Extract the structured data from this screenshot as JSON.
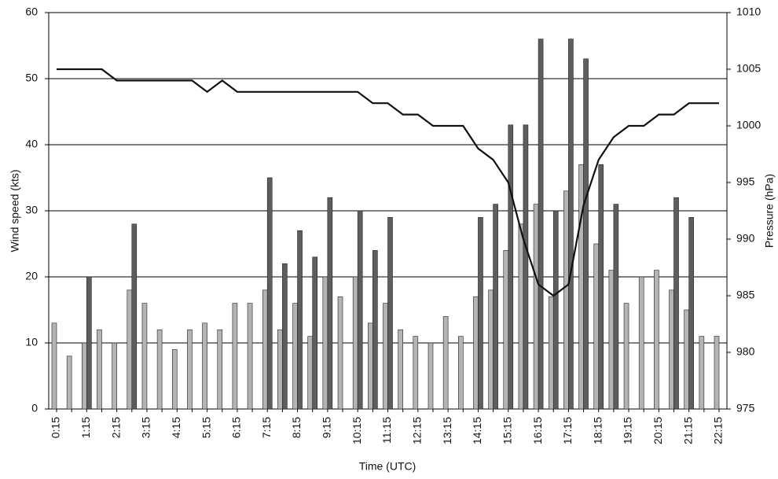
{
  "chart_data": {
    "type": "bar_line",
    "y_label": "Wind speed (kts)",
    "y2_label": "Pressure (hPa)",
    "x_label": "Time (UTC)",
    "categories": [
      "0:15",
      null,
      "1:15",
      null,
      "2:15",
      null,
      "3:15",
      null,
      "4:15",
      null,
      "5:15",
      null,
      "6:15",
      null,
      "7:15",
      null,
      "8:15",
      null,
      "9:15",
      null,
      "10:15",
      null,
      "11:15",
      null,
      "12:15",
      null,
      "13:15",
      null,
      "14:15",
      null,
      "15:15",
      null,
      "16:15",
      null,
      "17:15",
      null,
      "18:15",
      null,
      "19:15",
      null,
      "20:15",
      null,
      "21:15",
      null,
      "22:15"
    ],
    "series": [
      {
        "type": "bar",
        "color": "#b4b4b4",
        "values": [
          13,
          8,
          10,
          12,
          10,
          18,
          16,
          12,
          9,
          12,
          13,
          12,
          16,
          16,
          18,
          12,
          16,
          11,
          20,
          17,
          20,
          13,
          16,
          12,
          11,
          10,
          14,
          11,
          17,
          18,
          24,
          28,
          31,
          17,
          33,
          37,
          25,
          21,
          16,
          20,
          21,
          18,
          15,
          11,
          11
        ]
      },
      {
        "type": "bar",
        "color": "#5e5e5e",
        "values": [
          null,
          null,
          20,
          null,
          null,
          28,
          null,
          null,
          null,
          null,
          null,
          null,
          null,
          null,
          35,
          22,
          27,
          23,
          32,
          null,
          30,
          24,
          29,
          null,
          null,
          null,
          null,
          null,
          29,
          31,
          43,
          43,
          56,
          30,
          56,
          53,
          37,
          31,
          null,
          null,
          null,
          32,
          29,
          null,
          null
        ]
      },
      {
        "type": "line",
        "axis": "y2",
        "color": "#111111",
        "values": [
          1005,
          1005,
          1005,
          1005,
          1004,
          1004,
          1004,
          1004,
          1004,
          1004,
          1003,
          1004,
          1003,
          1003,
          1003,
          1003,
          1003,
          1003,
          1003,
          1003,
          1003,
          1002,
          1002,
          1001,
          1001,
          1000,
          1000,
          1000,
          998,
          997,
          995,
          990,
          986,
          985,
          986,
          993,
          997,
          999,
          1000,
          1000,
          1001,
          1001,
          1002,
          1002,
          1002
        ]
      }
    ],
    "ylim": [
      0,
      60
    ],
    "yticks": [
      0,
      10,
      20,
      30,
      40,
      50,
      60
    ],
    "y2lim": [
      975,
      1010
    ],
    "y2ticks": [
      975,
      980,
      985,
      990,
      995,
      1000,
      1005,
      1010
    ],
    "grid": true
  }
}
